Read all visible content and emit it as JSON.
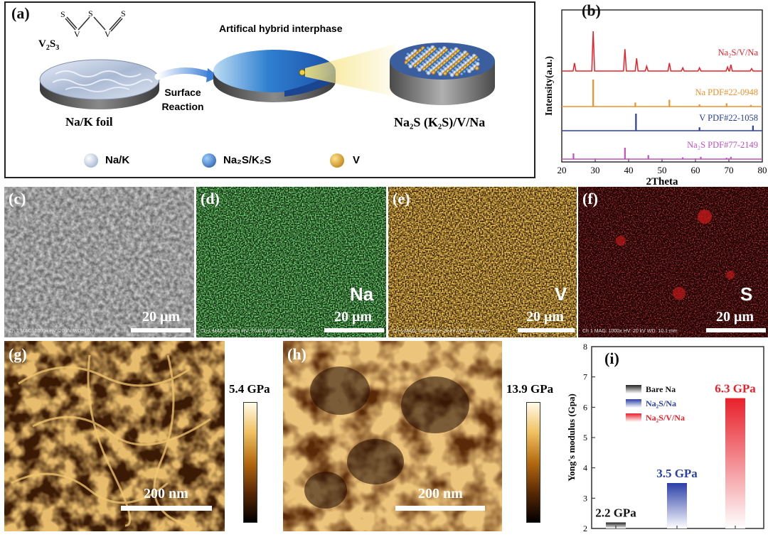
{
  "panels": {
    "a": {
      "label": "(a)",
      "v2s3": "V₂S₃",
      "molecule_atoms": [
        "S",
        "V",
        "S",
        "V",
        "S"
      ],
      "interphase_title": "Artifical hybrid interphase",
      "arrow_label_1": "Surface",
      "arrow_label_2": "Reaction",
      "foil_label": "Na/K foil",
      "product_label": "Na₂S (K₂S)/V/Na",
      "legend": [
        {
          "name": "Na/K",
          "color": "#b9c9df"
        },
        {
          "name": "Na₂S/K₂S",
          "color": "#2a66c0"
        },
        {
          "name": "V",
          "color": "#e0a020"
        }
      ]
    },
    "b": {
      "label": "(b)"
    },
    "c": {
      "label": "(c)",
      "scale": "20 μm",
      "ch": "Ch 1",
      "meta": "Ch 1   MAG: 1000x   HV: 20 kV   WD: 10.1 mm"
    },
    "d": {
      "label": "(d)",
      "scale": "20 μm",
      "element": "Na",
      "ch": "Na",
      "meta": "Ch 1   MAG: 1000x   HV: 20 kV   WD: 10.1 mm"
    },
    "e": {
      "label": "(e)",
      "scale": "20 μm",
      "element": "V",
      "ch": "V",
      "meta": "Ch 1   MAG: 1000x   HV: 20 kV   WD: 10.1 mm"
    },
    "f": {
      "label": "(f)",
      "scale": "20 μm",
      "element": "S",
      "ch": "S",
      "meta": "Ch 1   MAG: 1000x   HV: 20 kV   WD: 10.1 mm"
    },
    "g": {
      "label": "(g)",
      "scale": "200 nm",
      "colorbar_max": "5.4 GPa"
    },
    "h": {
      "label": "(h)",
      "scale": "200 nm",
      "colorbar_max": "13.9 GPa"
    },
    "i": {
      "label": "(i)"
    }
  },
  "chart_data": [
    {
      "type": "line",
      "panel": "b",
      "xlabel": "2Theta",
      "ylabel": "Intensity(a.u.)",
      "xlim": [
        20,
        80
      ],
      "xticks": [
        20,
        30,
        40,
        50,
        60,
        70,
        80
      ],
      "series": [
        {
          "name": "Na₂S/V/Na",
          "color": "#e8202a",
          "peaks": [
            [
              23.8,
              0.2
            ],
            [
              29.4,
              1.0
            ],
            [
              38.9,
              0.55
            ],
            [
              42.4,
              0.32
            ],
            [
              45.4,
              0.12
            ],
            [
              52.2,
              0.2
            ],
            [
              56.2,
              0.08
            ],
            [
              61.2,
              0.08
            ],
            [
              69.6,
              0.1
            ],
            [
              70.6,
              0.16
            ],
            [
              76.8,
              0.06
            ]
          ]
        },
        {
          "name": "Na PDF#22-0948",
          "color": "#f0902a",
          "peaks": [
            [
              29.4,
              1.0
            ],
            [
              42.0,
              0.15
            ],
            [
              52.2,
              0.25
            ],
            [
              61.2,
              0.08
            ],
            [
              69.3,
              0.12
            ],
            [
              76.6,
              0.06
            ]
          ]
        },
        {
          "name": "V PDF#22-1058",
          "color": "#2a3f9a",
          "peaks": [
            [
              42.2,
              1.0
            ],
            [
              61.2,
              0.2
            ],
            [
              77.2,
              0.3
            ]
          ]
        },
        {
          "name": "Na₂S PDF#77-2149",
          "color": "#c050c0",
          "peaks": [
            [
              23.5,
              0.5
            ],
            [
              38.9,
              1.0
            ],
            [
              45.9,
              0.35
            ],
            [
              56.2,
              0.15
            ],
            [
              61.6,
              0.2
            ],
            [
              69.3,
              0.12
            ],
            [
              70.6,
              0.2
            ]
          ]
        }
      ]
    },
    {
      "type": "bar",
      "panel": "i",
      "ylabel": "Yong's modulus (Gpa)",
      "ylim": [
        2,
        8
      ],
      "yticks": [
        2,
        3,
        4,
        5,
        6,
        7,
        8
      ],
      "categories": [
        "Bare Na",
        "Na₂S/Na",
        "Na₂S/V/Na"
      ],
      "values": [
        2.2,
        3.5,
        6.3
      ],
      "value_labels": [
        "2.2 GPa",
        "3.5 GPa",
        "6.3 GPa"
      ],
      "colors": [
        "#222222",
        "#2a3fa8",
        "#e8202a"
      ],
      "legend_position": "top-left"
    }
  ]
}
